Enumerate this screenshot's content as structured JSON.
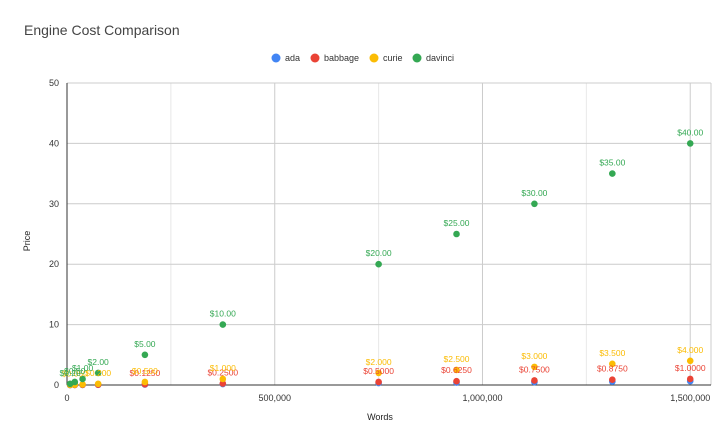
{
  "chart_data": {
    "type": "scatter",
    "title": "Engine Cost Comparison",
    "xlabel": "Words",
    "ylabel": "Price",
    "xlim": [
      0,
      1550000
    ],
    "ylim": [
      0,
      50
    ],
    "x_ticks": [
      0,
      500000,
      1000000,
      1500000
    ],
    "x_tick_labels": [
      "0",
      "500,000",
      "1,000,000",
      "1,500,000"
    ],
    "y_ticks": [
      0,
      10,
      20,
      30,
      40,
      50
    ],
    "y_tick_labels": [
      "0",
      "10",
      "20",
      "30",
      "40",
      "50"
    ],
    "grid": true,
    "legend_position": "top",
    "series": [
      {
        "name": "ada",
        "color": "#4285f4",
        "points": [
          {
            "x": 7500,
            "y": 0.0032
          },
          {
            "x": 18750,
            "y": 0.008
          },
          {
            "x": 37500,
            "y": 0.016
          },
          {
            "x": 75000,
            "y": 0.032
          },
          {
            "x": 187500,
            "y": 0.08
          },
          {
            "x": 375000,
            "y": 0.16
          },
          {
            "x": 750000,
            "y": 0.32
          },
          {
            "x": 937500,
            "y": 0.4
          },
          {
            "x": 1125000,
            "y": 0.48
          },
          {
            "x": 1312500,
            "y": 0.56
          },
          {
            "x": 1500000,
            "y": 0.64
          }
        ]
      },
      {
        "name": "babbage",
        "color": "#ea4335",
        "points": [
          {
            "x": 7500,
            "y": 0.005
          },
          {
            "x": 18750,
            "y": 0.0125
          },
          {
            "x": 37500,
            "y": 0.025
          },
          {
            "x": 75000,
            "y": 0.05
          },
          {
            "x": 187500,
            "y": 0.125,
            "label": "$0.1250"
          },
          {
            "x": 375000,
            "y": 0.25,
            "label": "$0.2500"
          },
          {
            "x": 750000,
            "y": 0.5,
            "label": "$0.5000"
          },
          {
            "x": 937500,
            "y": 0.625,
            "label": "$0.6250"
          },
          {
            "x": 1125000,
            "y": 0.75,
            "label": "$0.7500"
          },
          {
            "x": 1312500,
            "y": 0.875,
            "label": "$0.8750"
          },
          {
            "x": 1500000,
            "y": 1.0,
            "label": "$1.0000"
          }
        ]
      },
      {
        "name": "curie",
        "color": "#fbbc04",
        "points": [
          {
            "x": 7500,
            "y": 0.02
          },
          {
            "x": 18750,
            "y": 0.05,
            "label": "$0.050"
          },
          {
            "x": 37500,
            "y": 0.1
          },
          {
            "x": 75000,
            "y": 0.2,
            "label": "$0.200"
          },
          {
            "x": 187500,
            "y": 0.5,
            "label": "$0.500"
          },
          {
            "x": 375000,
            "y": 1.0,
            "label": "$1.000"
          },
          {
            "x": 750000,
            "y": 2.0,
            "label": "$2.000"
          },
          {
            "x": 937500,
            "y": 2.5,
            "label": "$2.500"
          },
          {
            "x": 1125000,
            "y": 3.0,
            "label": "$3.000"
          },
          {
            "x": 1312500,
            "y": 3.5,
            "label": "$3.500"
          },
          {
            "x": 1500000,
            "y": 4.0,
            "label": "$4.000"
          }
        ]
      },
      {
        "name": "davinci",
        "color": "#34a853",
        "points": [
          {
            "x": 7500,
            "y": 0.2,
            "label": "$0.20"
          },
          {
            "x": 18750,
            "y": 0.5,
            "label": "$0.50"
          },
          {
            "x": 37500,
            "y": 1.0,
            "label": "$1.00"
          },
          {
            "x": 75000,
            "y": 2.0,
            "label": "$2.00"
          },
          {
            "x": 187500,
            "y": 5.0,
            "label": "$5.00"
          },
          {
            "x": 375000,
            "y": 10.0,
            "label": "$10.00"
          },
          {
            "x": 750000,
            "y": 20.0,
            "label": "$20.00"
          },
          {
            "x": 937500,
            "y": 25.0,
            "label": "$25.00"
          },
          {
            "x": 1125000,
            "y": 30.0,
            "label": "$30.00"
          },
          {
            "x": 1312500,
            "y": 35.0,
            "label": "$35.00"
          },
          {
            "x": 1500000,
            "y": 40.0,
            "label": "$40.00"
          }
        ]
      }
    ]
  }
}
